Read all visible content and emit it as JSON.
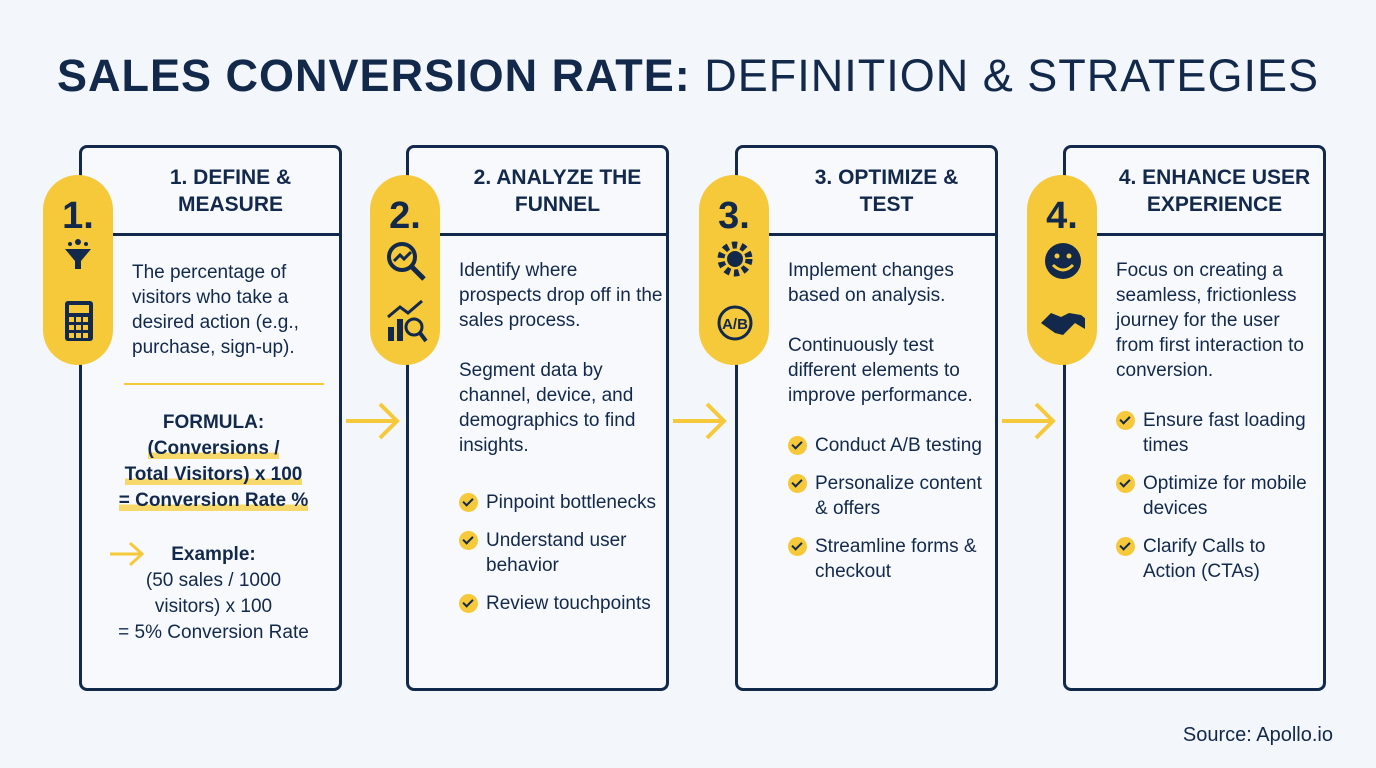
{
  "header": {
    "title_bold": "SALES CONVERSION RATE:",
    "title_light": "DEFINITION & STRATEGIES"
  },
  "steps": [
    {
      "number": "1.",
      "heading": "1. DEFINE & MEASURE",
      "paragraphs": [
        "The percentage of visitors who take a desired action (e.g., purchase, sign-up)."
      ],
      "formula": {
        "label": "FORMULA:",
        "lines": [
          "(Conversions /",
          "Total Visitors) x 100",
          "= Conversion Rate %"
        ]
      },
      "example": {
        "label": "Example:",
        "lines": [
          "(50 sales / 1000",
          "visitors) x 100",
          "= 5% Conversion Rate"
        ]
      }
    },
    {
      "number": "2.",
      "heading": "2. ANALYZE THE FUNNEL",
      "paragraphs": [
        "Identify where prospects drop off in the sales process.",
        "Segment data by channel, device, and demographics to find insights."
      ],
      "bullets": [
        "Pinpoint bottlenecks",
        "Understand user behavior",
        "Review touchpoints"
      ]
    },
    {
      "number": "3.",
      "heading": "3. OPTIMIZE & TEST",
      "paragraphs": [
        "Implement changes based on analysis.",
        "Continuously test different elements to improve performance."
      ],
      "bullets": [
        "Conduct A/B testing",
        "Personalize content & offers",
        "Streamline forms & checkout"
      ]
    },
    {
      "number": "4.",
      "heading": "4. ENHANCE USER EXPERIENCE",
      "paragraphs": [
        "Focus on creating a seamless, frictionless journey for the user from first interaction to conversion."
      ],
      "bullets": [
        "Ensure fast loading times",
        "Optimize for mobile devices",
        "Clarify Calls to Action (CTAs)"
      ]
    }
  ],
  "footer": {
    "source": "Source: Apollo.io"
  }
}
